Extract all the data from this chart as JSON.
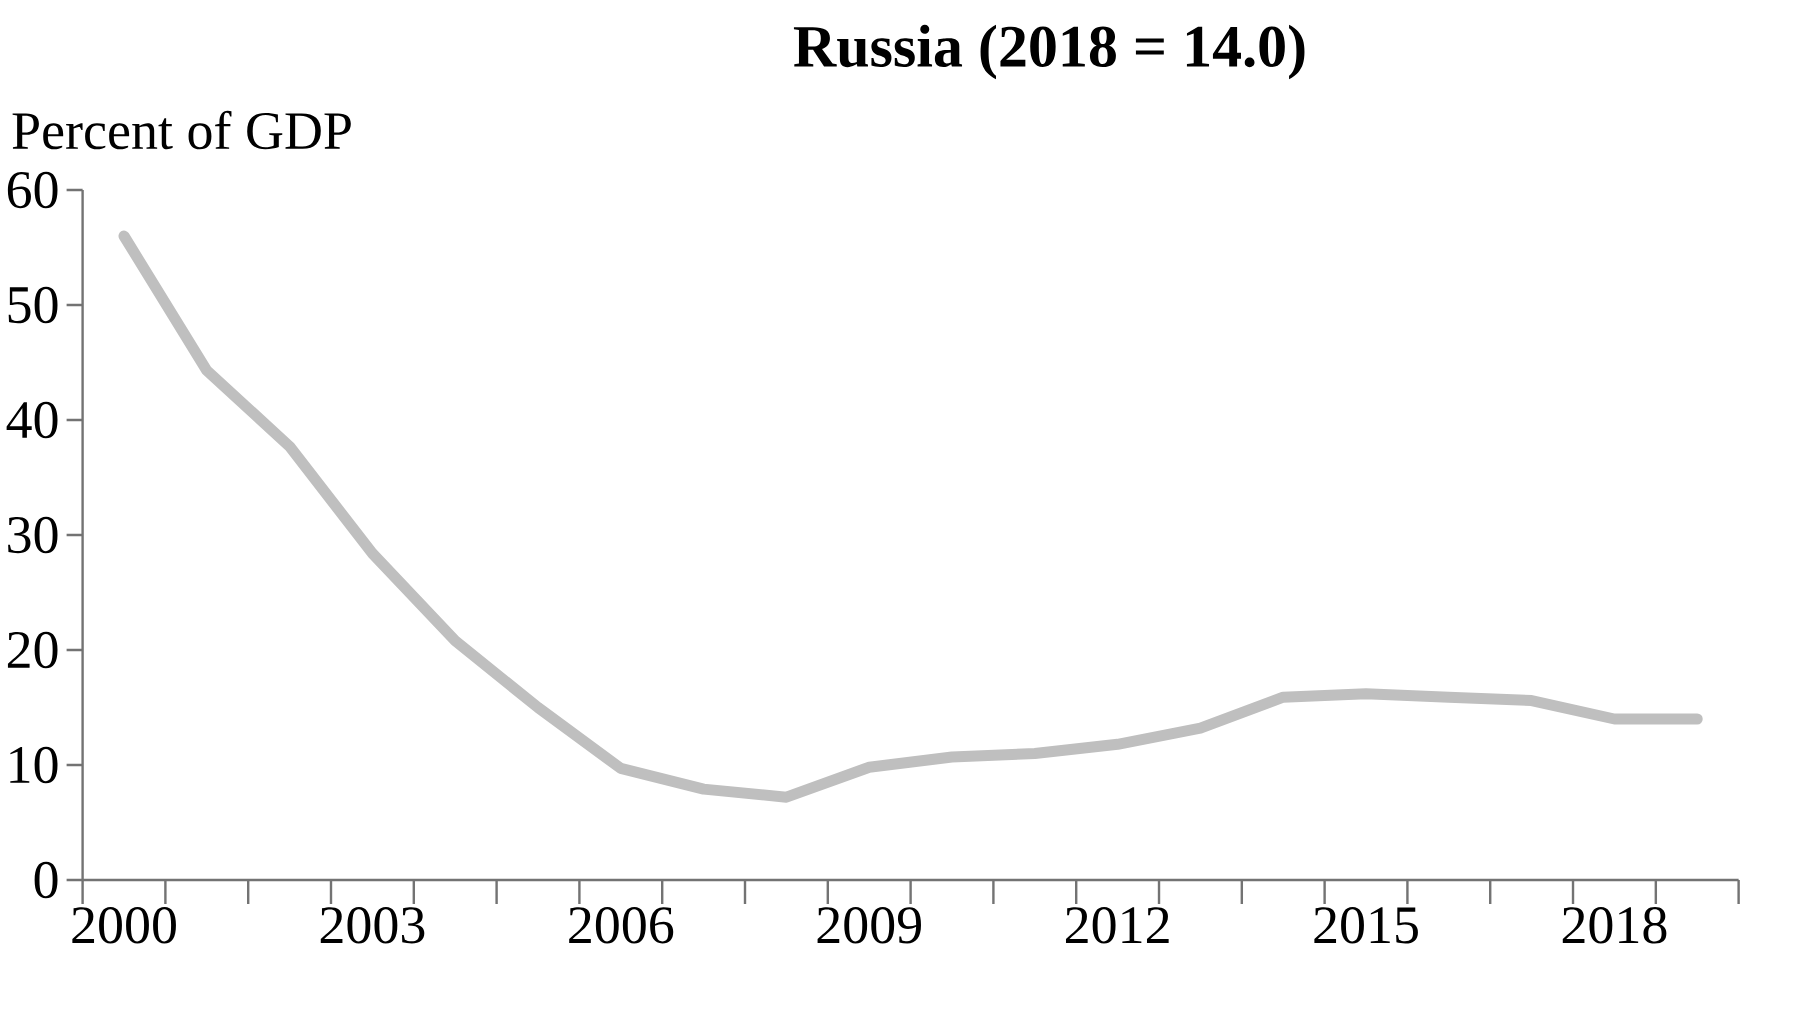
{
  "chart_data": {
    "type": "line",
    "title": "Russia (2018 = 14.0)",
    "ylabel": "Percent of GDP",
    "categories": [
      "2000",
      null,
      null,
      "2003",
      null,
      null,
      "2006",
      null,
      null,
      "2009",
      null,
      null,
      "2012",
      null,
      null,
      "2015",
      null,
      null,
      "2018",
      null
    ],
    "series": [
      {
        "color": "#bfbfbf",
        "values": [
          56.0,
          44.3,
          37.7,
          28.4,
          20.8,
          15.0,
          9.7,
          7.9,
          7.2,
          9.8,
          10.7,
          11.0,
          11.8,
          13.2,
          15.9,
          16.2,
          15.9,
          15.6,
          14.0,
          14.0
        ]
      }
    ],
    "ylim": [
      0,
      60
    ],
    "yticks": [
      0,
      10,
      20,
      30,
      40,
      50,
      60
    ]
  }
}
